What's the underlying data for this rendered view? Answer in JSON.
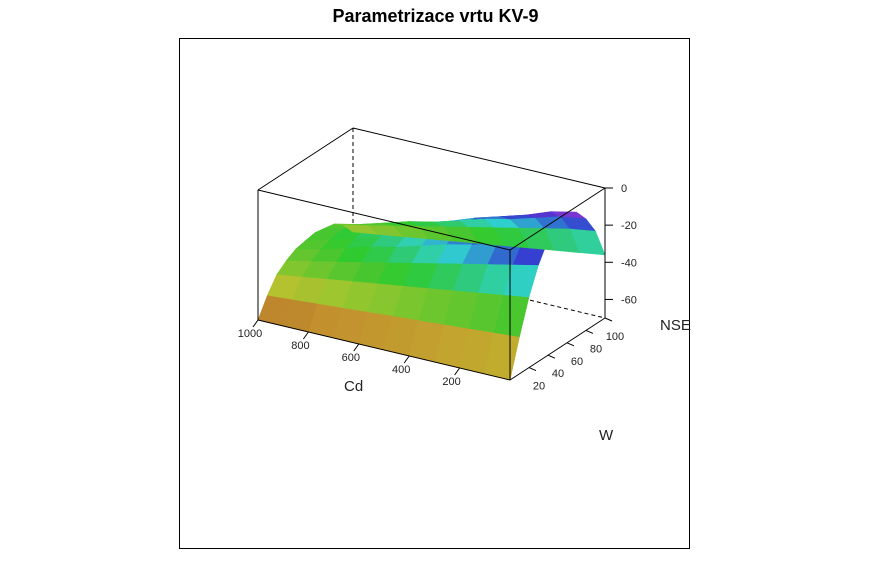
{
  "chart_data": {
    "type": "surface3d",
    "title": "Parametrizace vrtu KV-9",
    "xlabel": "Cd",
    "ylabel": "W",
    "zlabel": "NSE",
    "x_ticks": [
      1000,
      800,
      600,
      400,
      200
    ],
    "y_ticks": [
      20,
      40,
      60,
      80,
      100
    ],
    "z_ticks": [
      0,
      -20,
      -40,
      -60
    ],
    "xlim": [
      0,
      1000
    ],
    "ylim": [
      0,
      100
    ],
    "zlim": [
      -70,
      0
    ],
    "grid": false,
    "legend": "none",
    "surface": {
      "Cd": [
        0,
        100,
        200,
        300,
        400,
        500,
        600,
        700,
        800,
        900,
        1000
      ],
      "W": [
        0,
        10,
        20,
        30,
        40,
        50,
        60,
        70,
        80,
        90,
        100
      ],
      "NSE": [
        [
          -70,
          -50,
          -32,
          -18,
          -8,
          -2,
          0,
          -3,
          -10,
          -20,
          -36
        ],
        [
          -70,
          -51,
          -34,
          -21,
          -12,
          -6,
          -4,
          -6,
          -12,
          -22,
          -38
        ],
        [
          -70,
          -52,
          -36,
          -24,
          -16,
          -11,
          -9,
          -11,
          -16,
          -25,
          -40
        ],
        [
          -70,
          -53,
          -38,
          -27,
          -20,
          -16,
          -14,
          -15,
          -20,
          -28,
          -42
        ],
        [
          -70,
          -54,
          -40,
          -30,
          -23,
          -20,
          -18,
          -19,
          -23,
          -31,
          -44
        ],
        [
          -70,
          -55,
          -42,
          -33,
          -27,
          -24,
          -23,
          -24,
          -27,
          -34,
          -46
        ],
        [
          -70,
          -56,
          -44,
          -36,
          -31,
          -28,
          -27,
          -28,
          -31,
          -37,
          -48
        ],
        [
          -70,
          -57,
          -46,
          -39,
          -34,
          -32,
          -31,
          -32,
          -34,
          -40,
          -50
        ],
        [
          -70,
          -58,
          -48,
          -42,
          -38,
          -36,
          -35,
          -36,
          -38,
          -43,
          -52
        ],
        [
          -70,
          -59,
          -50,
          -45,
          -42,
          -40,
          -39,
          -40,
          -42,
          -46,
          -54
        ],
        [
          -70,
          -60,
          -52,
          -48,
          -45,
          -44,
          -43,
          -44,
          -45,
          -49,
          -56
        ]
      ]
    }
  }
}
